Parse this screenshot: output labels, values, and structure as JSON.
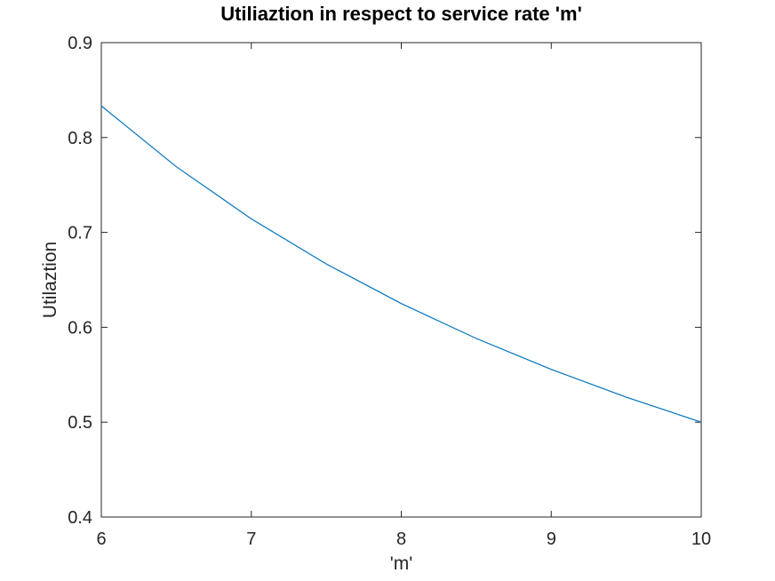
{
  "chart_data": {
    "type": "line",
    "title": "Utiliaztion in respect to service rate 'm'",
    "xlabel": "'m'",
    "ylabel": "Utilaztion",
    "xlim": [
      6,
      10
    ],
    "ylim": [
      0.4,
      0.9
    ],
    "xticks": [
      "6",
      "7",
      "8",
      "9",
      "10"
    ],
    "yticks": [
      "0.4",
      "0.5",
      "0.6",
      "0.7",
      "0.8",
      "0.9"
    ],
    "grid": false,
    "series": [
      {
        "color": "#0072bd",
        "x": [
          6,
          6.5,
          7,
          7.5,
          8,
          8.5,
          9,
          9.5,
          10
        ],
        "y": [
          0.8333,
          0.7692,
          0.7143,
          0.6667,
          0.625,
          0.5882,
          0.5556,
          0.5263,
          0.5
        ]
      }
    ]
  }
}
